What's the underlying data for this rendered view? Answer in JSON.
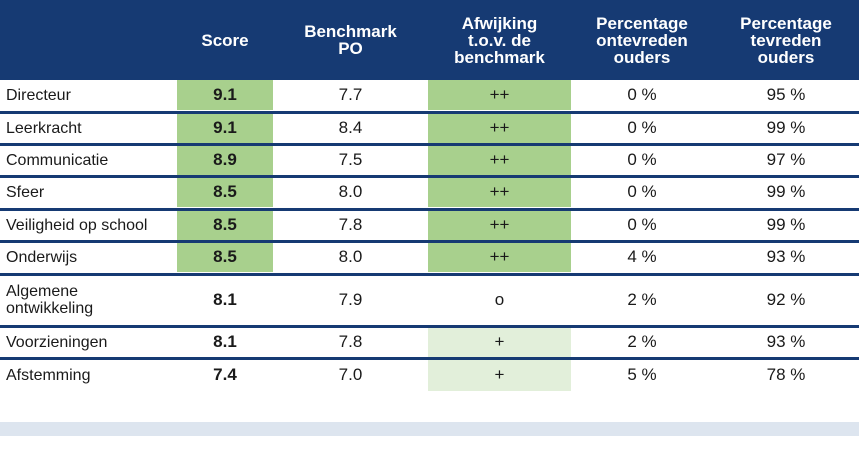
{
  "colors": {
    "header_bg": "#163a73",
    "separator": "#163a73",
    "green_strong": "#a8d08d",
    "green_light": "#e2efda",
    "footer_band": "#dde5ef"
  },
  "columns": [
    "",
    "Score",
    "Benchmark\nPO",
    "Afwijking\nt.o.v. de\nbenchmark",
    "Percentage\nontevreden\nouders",
    "Percentage\ntevreden\nouders"
  ],
  "rows": [
    {
      "label": "Directeur",
      "score": "9.1",
      "benchmark": "7.7",
      "deviation": "++",
      "unsatisfied": "0 %",
      "satisfied": "95 %",
      "score_hl": "strong",
      "dev_hl": "strong"
    },
    {
      "label": "Leerkracht",
      "score": "9.1",
      "benchmark": "8.4",
      "deviation": "++",
      "unsatisfied": "0 %",
      "satisfied": "99 %",
      "score_hl": "strong",
      "dev_hl": "strong"
    },
    {
      "label": "Communicatie",
      "score": "8.9",
      "benchmark": "7.5",
      "deviation": "++",
      "unsatisfied": "0 %",
      "satisfied": "97 %",
      "score_hl": "strong",
      "dev_hl": "strong"
    },
    {
      "label": "Sfeer",
      "score": "8.5",
      "benchmark": "8.0",
      "deviation": "++",
      "unsatisfied": "0 %",
      "satisfied": "99 %",
      "score_hl": "strong",
      "dev_hl": "strong"
    },
    {
      "label": "Veiligheid op school",
      "score": "8.5",
      "benchmark": "7.8",
      "deviation": "++",
      "unsatisfied": "0 %",
      "satisfied": "99 %",
      "score_hl": "strong",
      "dev_hl": "strong"
    },
    {
      "label": "Onderwijs",
      "score": "8.5",
      "benchmark": "8.0",
      "deviation": "++",
      "unsatisfied": "4 %",
      "satisfied": "93 %",
      "score_hl": "strong",
      "dev_hl": "strong"
    },
    {
      "label": "Algemene\nontwikkeling",
      "score": "8.1",
      "benchmark": "7.9",
      "deviation": "o",
      "unsatisfied": "2 %",
      "satisfied": "92 %",
      "score_hl": "none",
      "dev_hl": "none"
    },
    {
      "label": "Voorzieningen",
      "score": "8.1",
      "benchmark": "7.8",
      "deviation": "+",
      "unsatisfied": "2 %",
      "satisfied": "93 %",
      "score_hl": "none",
      "dev_hl": "light"
    },
    {
      "label": "Afstemming",
      "score": "7.4",
      "benchmark": "7.0",
      "deviation": "+",
      "unsatisfied": "5 %",
      "satisfied": "78 %",
      "score_hl": "none",
      "dev_hl": "light"
    }
  ]
}
